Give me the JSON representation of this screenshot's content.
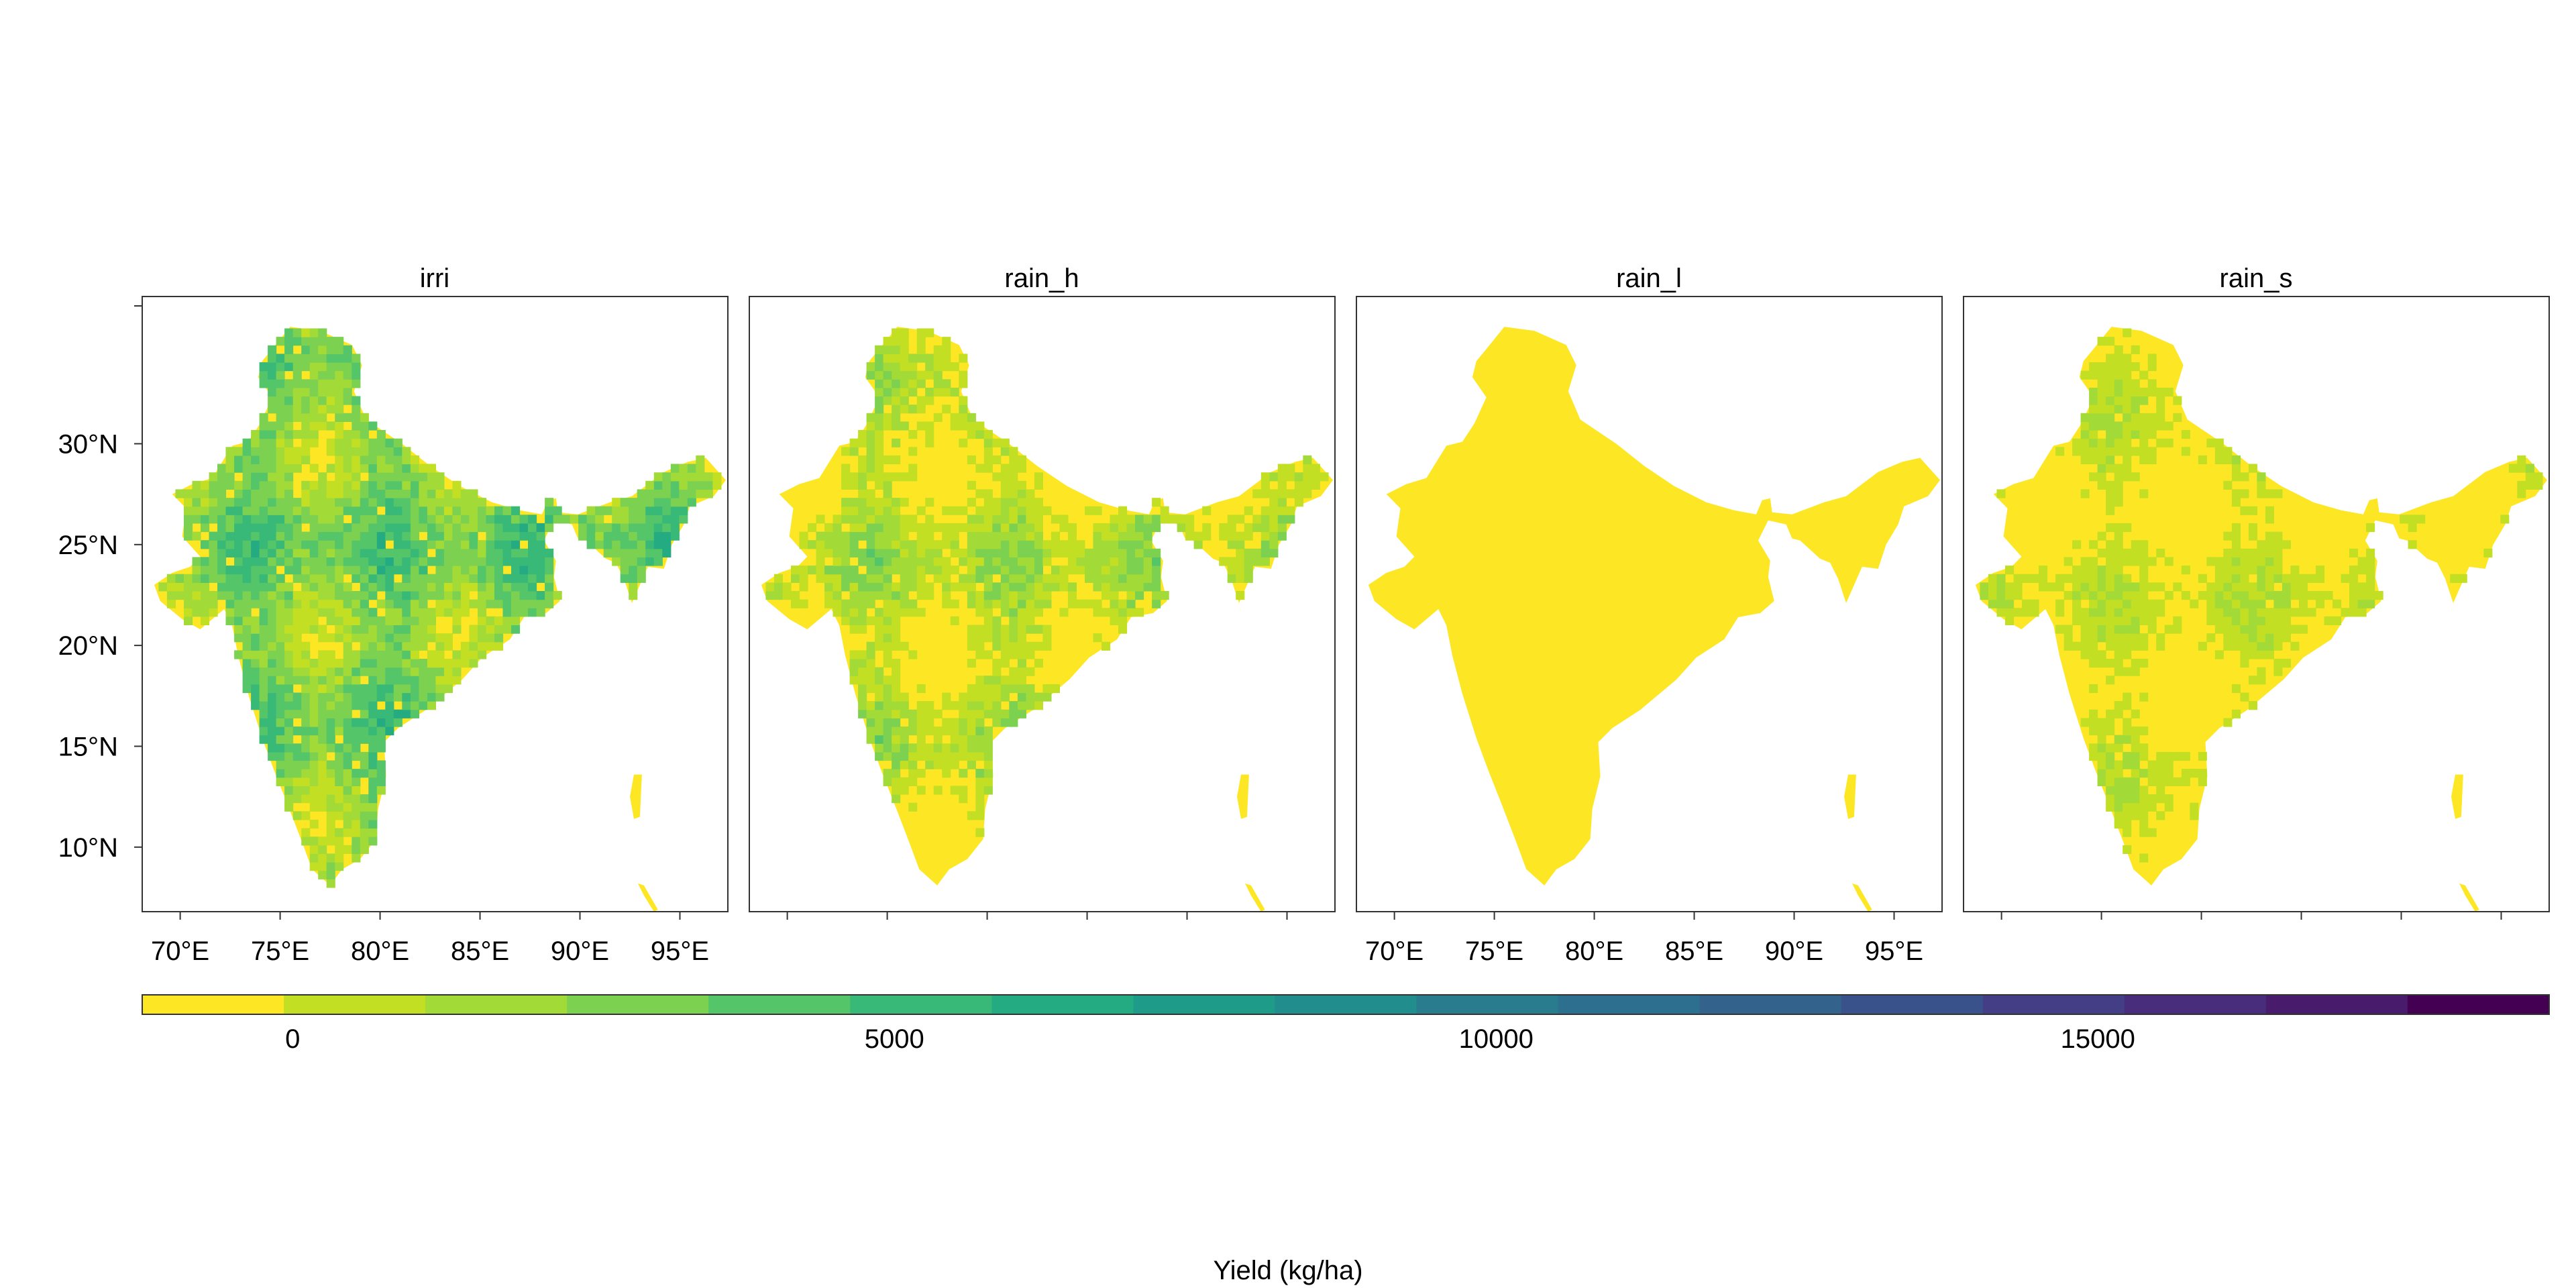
{
  "panels": [
    {
      "title": "irri",
      "level": 0.48,
      "variance": 0.3,
      "seed": 11
    },
    {
      "title": "rain_h",
      "level": 0.22,
      "variance": 0.26,
      "seed": 23
    },
    {
      "title": "rain_l",
      "level": 0.02,
      "variance": 0.06,
      "seed": 37
    },
    {
      "title": "rain_s",
      "level": 0.13,
      "variance": 0.2,
      "seed": 53
    }
  ],
  "axes": {
    "x_ticks": [
      "70°E",
      "75°E",
      "80°E",
      "85°E",
      "90°E",
      "95°E"
    ],
    "y_ticks": [
      "30°N",
      "25°N",
      "20°N",
      "15°N",
      "10°N"
    ],
    "x_tick_values": [
      70,
      75,
      80,
      85,
      90,
      95
    ],
    "y_tick_values": [
      30,
      25,
      20,
      15,
      10
    ],
    "lon_range": [
      68.1,
      97.4
    ],
    "lat_range": [
      6.8,
      37.3
    ]
  },
  "colorbar": {
    "range": [
      -1250,
      18750
    ],
    "ticks": [
      "0",
      "5000",
      "10000",
      "15000"
    ],
    "tick_values": [
      0,
      5000,
      10000,
      15000
    ],
    "colors": [
      "#FDE725",
      "#C2DF23",
      "#A2DA37",
      "#7DD151",
      "#54C568",
      "#38B977",
      "#25AB82",
      "#1E9C89",
      "#228D8D",
      "#287C8E",
      "#2D6F8E",
      "#33628D",
      "#3A528B",
      "#433E85",
      "#472D7B",
      "#481B6D",
      "#440154"
    ],
    "label": "Yield (kg/ha)"
  }
}
